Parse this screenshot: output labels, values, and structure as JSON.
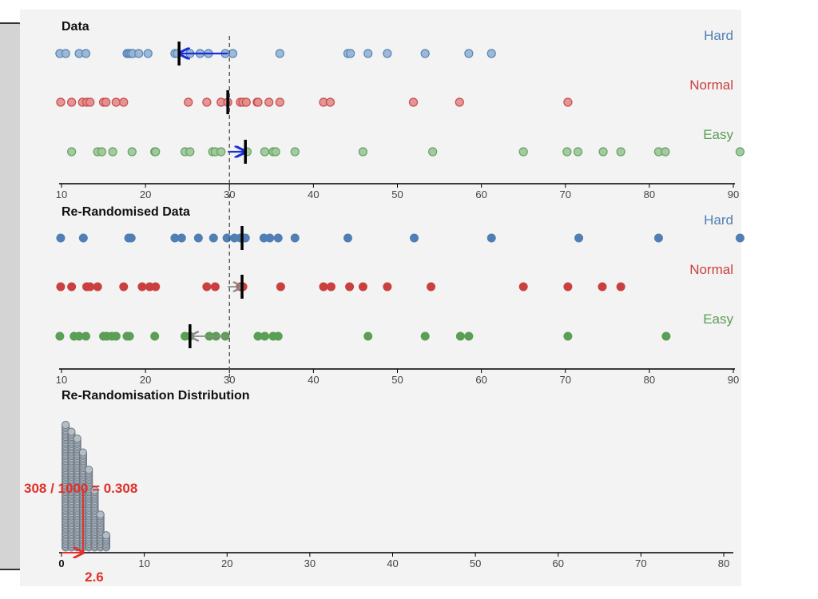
{
  "colors": {
    "Hard": "#4f7fb4",
    "Normal": "#c9403f",
    "Easy": "#5b9e55",
    "stack": "#8d9aa6",
    "annotation": "#e0302a",
    "arrow": "#1b2fd6"
  },
  "chart_data": [
    {
      "id": "data",
      "type": "scatter",
      "title": "Data",
      "xlim": [
        10,
        90
      ],
      "xticks": [
        10,
        20,
        30,
        40,
        50,
        60,
        70,
        80,
        90
      ],
      "reference_line": 30,
      "point_style": "light",
      "series": [
        {
          "name": "Hard",
          "label": "Hard",
          "mean": 24,
          "values": [
            9.8,
            10.5,
            12.1,
            12.9,
            17.8,
            18.0,
            18.1,
            18.3,
            18.5,
            19.2,
            20.3,
            23.5,
            23.8,
            25.3,
            26.5,
            27.5,
            29.5,
            30.4,
            36,
            44.1,
            44.4,
            46.5,
            48.8,
            53.3,
            58.5,
            61.2
          ]
        },
        {
          "name": "Normal",
          "label": "Normal",
          "mean": 29.8,
          "values": [
            9.9,
            11.2,
            12.5,
            13.0,
            13.4,
            15.0,
            15.3,
            16.5,
            17.4,
            25.1,
            27.3,
            29.0,
            29.8,
            31.3,
            31.6,
            32.0,
            33.3,
            33.4,
            34.7,
            36,
            41.2,
            42.0,
            51.9,
            57.4,
            70.3
          ]
        },
        {
          "name": "Easy",
          "label": "Easy",
          "mean": 31.9,
          "values": [
            11.2,
            14.3,
            14.8,
            16.1,
            18.4,
            21.1,
            21.2,
            24.7,
            25.3,
            28.0,
            28.3,
            29.0,
            32.1,
            34.2,
            35.2,
            35.5,
            37.8,
            45.9,
            54.2,
            65,
            70.2,
            71.5,
            74.5,
            76.6,
            81.1,
            81.9,
            90.8
          ]
        }
      ],
      "mean_shifts": [
        {
          "series": "Hard",
          "from": 29.8,
          "to": 24
        },
        {
          "series": "Easy",
          "from": 29.8,
          "to": 31.9
        }
      ]
    },
    {
      "id": "rerand",
      "type": "scatter",
      "title": "Re-Randomised Data",
      "xlim": [
        10,
        90
      ],
      "xticks": [
        10,
        20,
        30,
        40,
        50,
        60,
        70,
        80,
        90
      ],
      "reference_line": 30,
      "point_style": "solid",
      "series": [
        {
          "name": "Hard",
          "label": "Hard",
          "mean": 31.5,
          "values": [
            9.9,
            12.6,
            18.0,
            18.3,
            23.5,
            24.3,
            26.3,
            28.1,
            29.7,
            30.6,
            31.3,
            31.6,
            31.9,
            34.1,
            34.8,
            35.8,
            37.8,
            44.1,
            52.0,
            61.2,
            71.6,
            81.1,
            90.8
          ]
        },
        {
          "name": "Normal",
          "label": "Normal",
          "mean": 31.5,
          "values": [
            9.9,
            11.2,
            13.0,
            13.4,
            14.3,
            17.4,
            19.6,
            20.5,
            21.2,
            27.3,
            28.3,
            31.3,
            31.6,
            36.1,
            41.2,
            42.1,
            44.3,
            45.9,
            48.8,
            54.0,
            65.0,
            70.3,
            74.4,
            76.6
          ]
        },
        {
          "name": "Easy",
          "label": "Easy",
          "mean": 25.3,
          "values": [
            9.8,
            11.5,
            12.1,
            12.9,
            15.0,
            15.4,
            16.0,
            16.5,
            17.8,
            18.1,
            21.1,
            24.7,
            25.3,
            27.6,
            28.4,
            29.5,
            33.4,
            34.2,
            35.2,
            35.8,
            46.5,
            53.3,
            57.5,
            58.5,
            70.3,
            82.0
          ]
        }
      ],
      "mean_shifts": [
        {
          "series": "Normal",
          "from": 29.8,
          "to": 31.5
        },
        {
          "series": "Easy",
          "from": 29.8,
          "to": 25.3
        }
      ]
    },
    {
      "id": "dist",
      "type": "dot-histogram",
      "title": "Re-Randomisation Distribution",
      "xlim": [
        0,
        80
      ],
      "xticks": [
        0,
        10,
        20,
        30,
        40,
        50,
        60,
        70,
        80
      ],
      "observed_statistic": 2.6,
      "total_rerandomisations": 1000,
      "count_at_or_above": 308,
      "tail_proportion": 0.308,
      "bins": [
        {
          "x": 0.5,
          "count": 72
        },
        {
          "x": 1.2,
          "count": 68
        },
        {
          "x": 1.9,
          "count": 64
        },
        {
          "x": 2.6,
          "count": 56
        },
        {
          "x": 3.3,
          "count": 46
        },
        {
          "x": 4.0,
          "count": 34
        },
        {
          "x": 4.7,
          "count": 20
        },
        {
          "x": 5.4,
          "count": 8
        }
      ]
    }
  ],
  "labels": {
    "annotation_text": "308 / 1000 = 0.308",
    "observed_label": "2.6"
  }
}
